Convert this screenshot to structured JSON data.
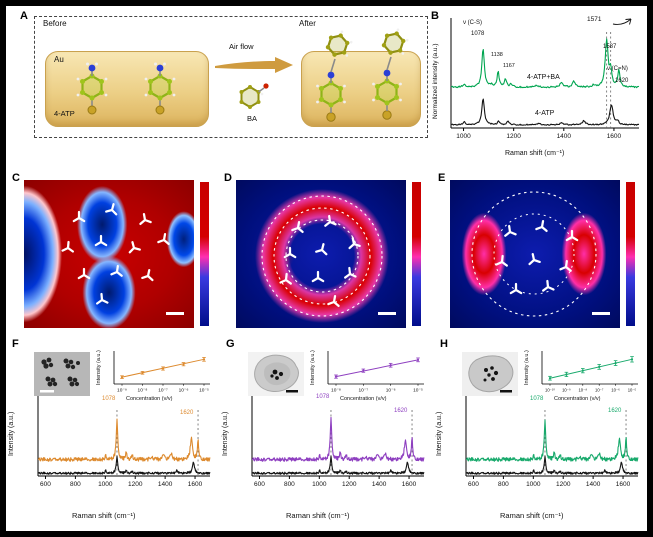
{
  "colors": {
    "figure_bg": "#ffffff",
    "frame_bg": "#000000",
    "substrate_gold": "#eccf86",
    "spectrum_green_b": "#00a550",
    "spectrum_orange_f": "#dd8a2e",
    "spectrum_purple_g": "#8e3fc0",
    "spectrum_green_h": "#17a96b",
    "map_red": "#b00000",
    "map_blue": "#0d1cae"
  },
  "panelA": {
    "label": "A",
    "before": "Before",
    "after": "After",
    "au": "Au",
    "molecule": "4-ATP",
    "airflow": "Air flow",
    "ba": "BA"
  },
  "panelB": {
    "label": "B",
    "ylabel": "Normalized intensity (a.u.)",
    "xlabel": "Raman shift (cm⁻¹)",
    "trace_top": "4-ATP+BA",
    "trace_bottom": "4-ATP",
    "ann": {
      "vcs": "ν (C-S)",
      "p1078": "1078",
      "p1138": "1138",
      "p1167": "1167",
      "p1571": "1571",
      "p1587": "1587",
      "vcn": "ν (C=N)",
      "p1620": "1620"
    }
  },
  "panelC": {
    "label": "C"
  },
  "panelD": {
    "label": "D"
  },
  "panelE": {
    "label": "E"
  },
  "panelF": {
    "label": "F",
    "ylabel": "Intensity (a.u.)",
    "xlabel": "Raman shift (cm⁻¹)",
    "peak1": "1078",
    "peak2": "1620",
    "inset_ylabel": "Intensity (a.u.)",
    "inset_xlabel": "Concentration (v/v)"
  },
  "panelG": {
    "label": "G",
    "ylabel": "Intensity (a.u.)",
    "xlabel": "Raman shift (cm⁻¹)",
    "peak1": "1078",
    "peak2": "1620",
    "inset_ylabel": "Intensity (a.u.)",
    "inset_xlabel": "Concentration (v/v)"
  },
  "panelH": {
    "label": "H",
    "ylabel": "Intensity (a.u.)",
    "xlabel": "Raman shift (cm⁻¹)",
    "peak1": "1078",
    "peak2": "1620",
    "inset_ylabel": "Intensity (a.u.)",
    "inset_xlabel": "Concentration (v/v)"
  },
  "chart_data": [
    {
      "id": "B",
      "type": "line",
      "title": "",
      "xlabel": "Raman shift (cm⁻¹)",
      "ylabel": "Normalized intensity (a.u.)",
      "xlim": [
        950,
        1700
      ],
      "xticks": [
        1000,
        1200,
        1400,
        1600
      ],
      "dashed_lines": [
        1571,
        1587
      ],
      "peak_annotations": [
        1078,
        1138,
        1167,
        1571,
        1587,
        1620
      ],
      "series": [
        {
          "name": "4-ATP+BA",
          "color": "#00a550",
          "offset": 1.02,
          "noise": 0.02,
          "peaks": [
            [
              1003,
              0.08,
              5
            ],
            [
              1078,
              0.95,
              6
            ],
            [
              1110,
              0.05,
              5
            ],
            [
              1138,
              0.38,
              5
            ],
            [
              1167,
              0.2,
              5
            ],
            [
              1190,
              0.08,
              5
            ],
            [
              1290,
              0.04,
              8
            ],
            [
              1390,
              0.1,
              7
            ],
            [
              1440,
              0.14,
              7
            ],
            [
              1520,
              0.05,
              6
            ],
            [
              1571,
              1.15,
              7
            ],
            [
              1587,
              0.4,
              5
            ],
            [
              1620,
              0.42,
              5
            ]
          ]
        },
        {
          "name": "4-ATP",
          "color": "#141414",
          "offset": 0.08,
          "noise": 0.015,
          "peaks": [
            [
              1003,
              0.09,
              4
            ],
            [
              1078,
              0.65,
              6
            ],
            [
              1140,
              0.09,
              5
            ],
            [
              1178,
              0.09,
              5
            ],
            [
              1300,
              0.03,
              8
            ],
            [
              1390,
              0.04,
              7
            ],
            [
              1480,
              0.1,
              7
            ],
            [
              1590,
              0.5,
              8
            ],
            [
              1615,
              0.08,
              5
            ]
          ]
        }
      ]
    },
    {
      "id": "F",
      "type": "line",
      "xlabel": "Raman shift (cm⁻¹)",
      "ylabel": "Intensity (a.u.)",
      "xlim": [
        550,
        1700
      ],
      "xticks": [
        600,
        800,
        1000,
        1200,
        1400,
        1600
      ],
      "dashed_lines": [
        1078,
        1620
      ],
      "peak_annotations": [
        1078,
        1620
      ],
      "series": [
        {
          "color": "#dd8a2e",
          "offset": 0.3,
          "noise": 0.035,
          "peaks": [
            [
              1003,
              0.07,
              4
            ],
            [
              1078,
              0.72,
              6
            ],
            [
              1140,
              0.13,
              5
            ],
            [
              1180,
              0.09,
              5
            ],
            [
              1310,
              0.05,
              7
            ],
            [
              1390,
              0.09,
              7
            ],
            [
              1440,
              0.11,
              7
            ],
            [
              1575,
              0.4,
              8
            ],
            [
              1620,
              0.36,
              5
            ]
          ]
        },
        {
          "color": "#141414",
          "offset": 0.05,
          "noise": 0.02,
          "peaks": [
            [
              1003,
              0.05,
              4
            ],
            [
              1078,
              0.3,
              6
            ],
            [
              1140,
              0.05,
              5
            ],
            [
              1180,
              0.04,
              5
            ],
            [
              1480,
              0.05,
              7
            ],
            [
              1590,
              0.2,
              8
            ]
          ]
        }
      ],
      "inset": {
        "type": "scatter-line",
        "xlabel": "Concentration (v/v)",
        "ylabel": "Intensity (a.u.)",
        "color": "#dd8a2e",
        "xticklabels": [
          "10⁻⁹",
          "10⁻⁸",
          "10⁻⁷",
          "10⁻⁶",
          "10⁻⁵"
        ],
        "points": [
          0.18,
          0.34,
          0.5,
          0.66,
          0.84
        ],
        "errors": [
          0.05,
          0.05,
          0.06,
          0.06,
          0.07
        ]
      }
    },
    {
      "id": "G",
      "type": "line",
      "xlabel": "Raman shift (cm⁻¹)",
      "ylabel": "Intensity (a.u.)",
      "xlim": [
        550,
        1700
      ],
      "xticks": [
        600,
        800,
        1000,
        1200,
        1400,
        1600
      ],
      "dashed_lines": [
        1078,
        1620
      ],
      "peak_annotations": [
        1078,
        1620
      ],
      "series": [
        {
          "color": "#8e3fc0",
          "offset": 0.3,
          "noise": 0.035,
          "peaks": [
            [
              1003,
              0.07,
              4
            ],
            [
              1078,
              0.75,
              6
            ],
            [
              1140,
              0.13,
              5
            ],
            [
              1180,
              0.09,
              5
            ],
            [
              1310,
              0.05,
              7
            ],
            [
              1390,
              0.09,
              7
            ],
            [
              1440,
              0.11,
              7
            ],
            [
              1575,
              0.35,
              8
            ],
            [
              1620,
              0.4,
              5
            ]
          ]
        },
        {
          "color": "#141414",
          "offset": 0.05,
          "noise": 0.02,
          "peaks": [
            [
              1003,
              0.05,
              4
            ],
            [
              1078,
              0.3,
              6
            ],
            [
              1140,
              0.05,
              5
            ],
            [
              1180,
              0.04,
              5
            ],
            [
              1480,
              0.05,
              7
            ],
            [
              1590,
              0.2,
              8
            ]
          ]
        }
      ],
      "inset": {
        "type": "scatter-line",
        "xlabel": "Concentration (v/v)",
        "ylabel": "Intensity (a.u.)",
        "color": "#8e3fc0",
        "xticklabels": [
          "10⁻⁸",
          "10⁻⁷",
          "10⁻⁶",
          "10⁻⁵"
        ],
        "points": [
          0.2,
          0.42,
          0.62,
          0.82
        ],
        "errors": [
          0.06,
          0.06,
          0.07,
          0.07
        ]
      }
    },
    {
      "id": "H",
      "type": "line",
      "xlabel": "Raman shift (cm⁻¹)",
      "ylabel": "Intensity (a.u.)",
      "xlim": [
        550,
        1700
      ],
      "xticks": [
        600,
        800,
        1000,
        1200,
        1400,
        1600
      ],
      "dashed_lines": [
        1078,
        1620
      ],
      "peak_annotations": [
        1078,
        1620
      ],
      "series": [
        {
          "color": "#17a96b",
          "offset": 0.3,
          "noise": 0.035,
          "peaks": [
            [
              1003,
              0.07,
              4
            ],
            [
              1078,
              0.7,
              6
            ],
            [
              1140,
              0.13,
              5
            ],
            [
              1180,
              0.09,
              5
            ],
            [
              1310,
              0.05,
              7
            ],
            [
              1390,
              0.09,
              7
            ],
            [
              1440,
              0.11,
              7
            ],
            [
              1575,
              0.38,
              8
            ],
            [
              1620,
              0.4,
              5
            ]
          ]
        },
        {
          "color": "#141414",
          "offset": 0.05,
          "noise": 0.02,
          "peaks": [
            [
              1003,
              0.05,
              4
            ],
            [
              1078,
              0.3,
              6
            ],
            [
              1140,
              0.05,
              5
            ],
            [
              1180,
              0.04,
              5
            ],
            [
              1480,
              0.05,
              7
            ],
            [
              1590,
              0.2,
              8
            ]
          ]
        }
      ],
      "inset": {
        "type": "scatter-line",
        "xlabel": "Concentration (v/v)",
        "ylabel": "Intensity (a.u.)",
        "color": "#17a96b",
        "xticklabels": [
          "10⁻¹⁰",
          "10⁻⁹",
          "10⁻⁸",
          "10⁻⁷",
          "10⁻⁶",
          "10⁻⁵"
        ],
        "points": [
          0.14,
          0.28,
          0.42,
          0.56,
          0.7,
          0.84
        ],
        "errors": [
          0.07,
          0.08,
          0.08,
          0.09,
          0.09,
          0.1
        ]
      }
    }
  ]
}
